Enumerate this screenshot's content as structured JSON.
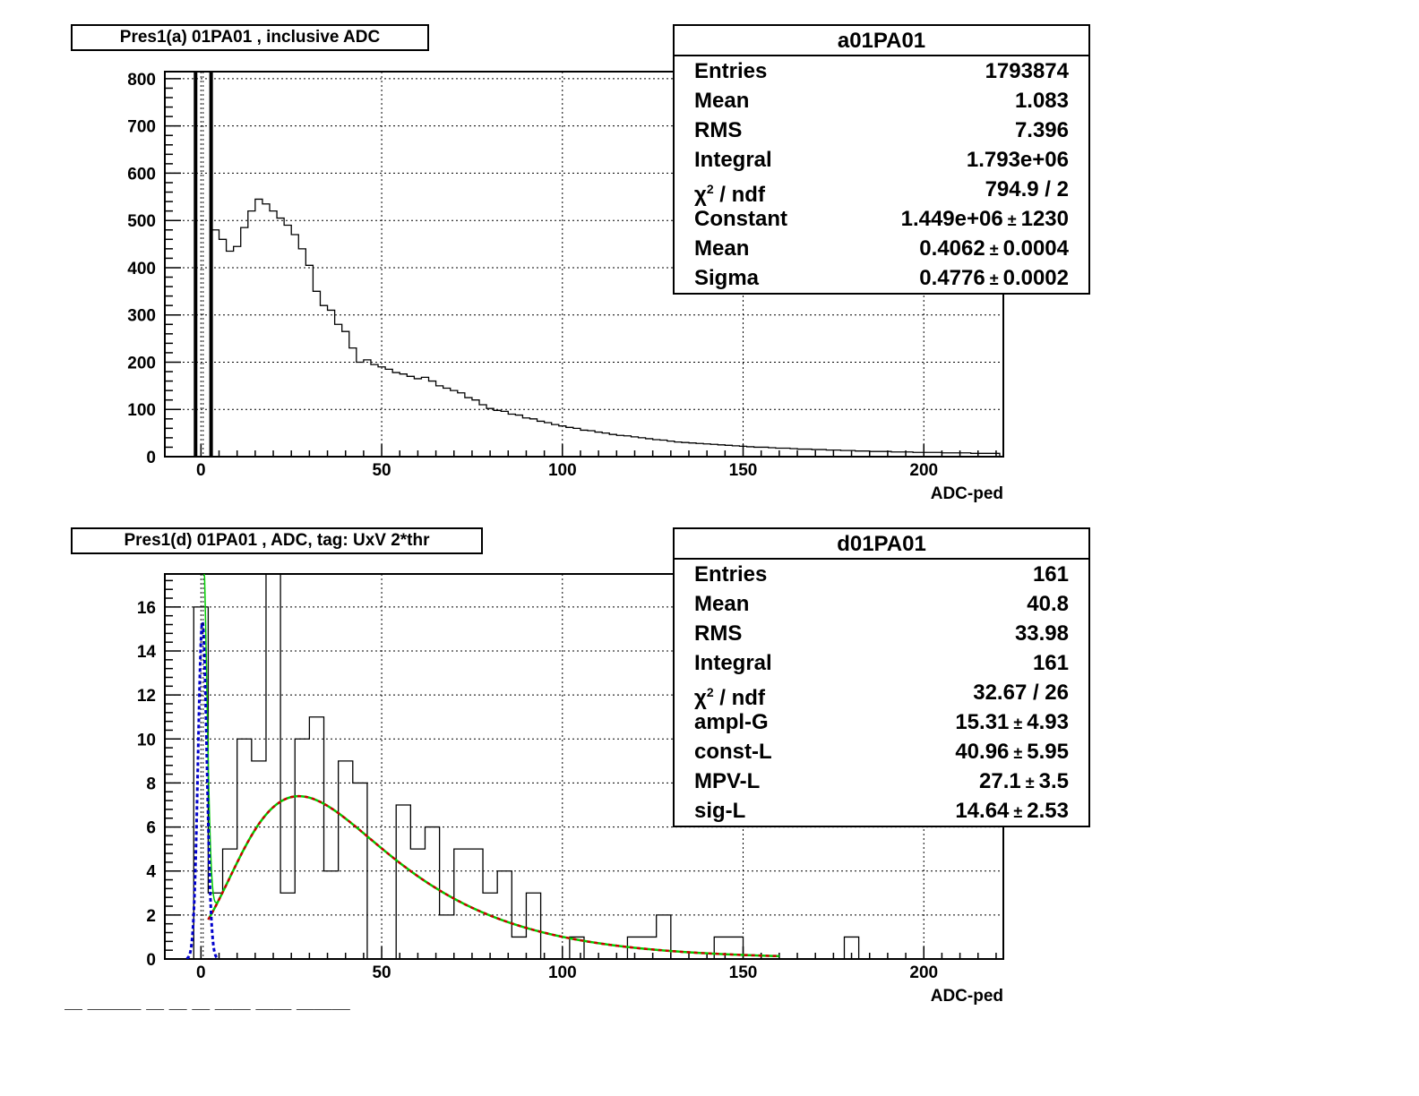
{
  "chart_data": [
    {
      "type": "bar",
      "title": "Pres1(a) 01PA01 , inclusive ADC",
      "xlabel": "ADC-ped",
      "ylabel": "",
      "xlim": [
        -10,
        222
      ],
      "ylim": [
        0,
        815
      ],
      "x_ticks": [
        "0",
        "50",
        "100",
        "150",
        "200"
      ],
      "y_ticks": [
        "0",
        "100",
        "200",
        "300",
        "400",
        "500",
        "600",
        "700",
        "800"
      ],
      "grid": true,
      "histogram": {
        "bin_width": 2,
        "x_start": 3,
        "values": [
          480,
          460,
          435,
          445,
          485,
          520,
          545,
          535,
          520,
          505,
          490,
          470,
          440,
          405,
          350,
          320,
          310,
          280,
          265,
          230,
          200,
          205,
          195,
          190,
          185,
          178,
          175,
          170,
          165,
          168,
          160,
          150,
          145,
          140,
          135,
          125,
          120,
          110,
          102,
          98,
          96,
          90,
          88,
          82,
          80,
          75,
          72,
          68,
          65,
          62,
          60,
          56,
          55,
          52,
          50,
          47,
          45,
          44,
          42,
          40,
          38,
          36,
          35,
          33,
          31,
          30,
          29,
          28,
          27,
          26,
          25,
          24,
          23,
          22,
          21,
          20,
          20,
          19,
          18,
          18,
          17,
          16,
          16,
          15,
          15,
          14,
          14,
          13,
          13,
          12,
          12,
          11,
          11,
          11,
          10,
          10,
          10,
          9,
          9,
          9,
          9,
          8,
          8,
          8,
          8,
          7,
          7,
          7,
          7
        ]
      },
      "pedestal_peak": {
        "x": [
          -1.5,
          2.8
        ],
        "value_clipped": true
      },
      "stats": {
        "name": "a01PA01",
        "rows": [
          {
            "label": "Entries",
            "value": "1793874",
            "err": ""
          },
          {
            "label": "Mean",
            "value": "1.083",
            "err": ""
          },
          {
            "label": "RMS",
            "value": "7.396",
            "err": ""
          },
          {
            "label": "Integral",
            "value": "1.793e+06",
            "err": ""
          },
          {
            "label": "chi2 / ndf",
            "value": "794.9 / 2",
            "err": ""
          },
          {
            "label": "Constant",
            "value": "1.449e+06",
            "err": "1230"
          },
          {
            "label": "Mean",
            "value": "0.4062",
            "err": "0.0004"
          },
          {
            "label": "Sigma",
            "value": "0.4776",
            "err": "0.0002"
          }
        ]
      }
    },
    {
      "type": "bar",
      "title": "Pres1(d) 01PA01 , ADC, tag: UxV 2*thr",
      "xlabel": "ADC-ped",
      "ylabel": "",
      "xlim": [
        -10,
        222
      ],
      "ylim": [
        0,
        17.5
      ],
      "x_ticks": [
        "0",
        "50",
        "100",
        "150",
        "200"
      ],
      "y_ticks": [
        "0",
        "2",
        "4",
        "6",
        "8",
        "10",
        "12",
        "14",
        "16"
      ],
      "grid": true,
      "histogram": {
        "bin_width": 4,
        "x_start": -2,
        "values": [
          16,
          3,
          5,
          10,
          9,
          18,
          3,
          10,
          11,
          4,
          9,
          8,
          0,
          0,
          7,
          5,
          6,
          2,
          5,
          5,
          3,
          4,
          1,
          3,
          0,
          0,
          1,
          0,
          0,
          0,
          1,
          1,
          2,
          0,
          0,
          0,
          1,
          1,
          0,
          0,
          0,
          0,
          0,
          0,
          0,
          1,
          0
        ]
      },
      "fit_landau": {
        "color": "#cc0000",
        "x": [
          0,
          160
        ],
        "mpv": 27.1,
        "sigma": 14.64,
        "constant": 40.96
      },
      "fit_gauss": {
        "color": "#0000cc",
        "x": [
          -4,
          5
        ],
        "amplitude": 15.31,
        "mean": 0.4,
        "sigma": 1.2
      },
      "fit_total": {
        "color": "#00cc00"
      },
      "stats": {
        "name": "d01PA01",
        "rows": [
          {
            "label": "Entries",
            "value": "161",
            "err": ""
          },
          {
            "label": "Mean",
            "value": "40.8",
            "err": ""
          },
          {
            "label": "RMS",
            "value": "33.98",
            "err": ""
          },
          {
            "label": "Integral",
            "value": "161",
            "err": ""
          },
          {
            "label": "chi2 / ndf",
            "value": "32.67 / 26",
            "err": ""
          },
          {
            "label": "ampl-G",
            "value": "15.31",
            "err": "4.93"
          },
          {
            "label": "const-L",
            "value": "40.96",
            "err": "5.95"
          },
          {
            "label": "MPV-L",
            "value": "27.1",
            "err": "3.5"
          },
          {
            "label": "sig-L",
            "value": "14.64",
            "err": "2.53"
          }
        ]
      }
    }
  ]
}
